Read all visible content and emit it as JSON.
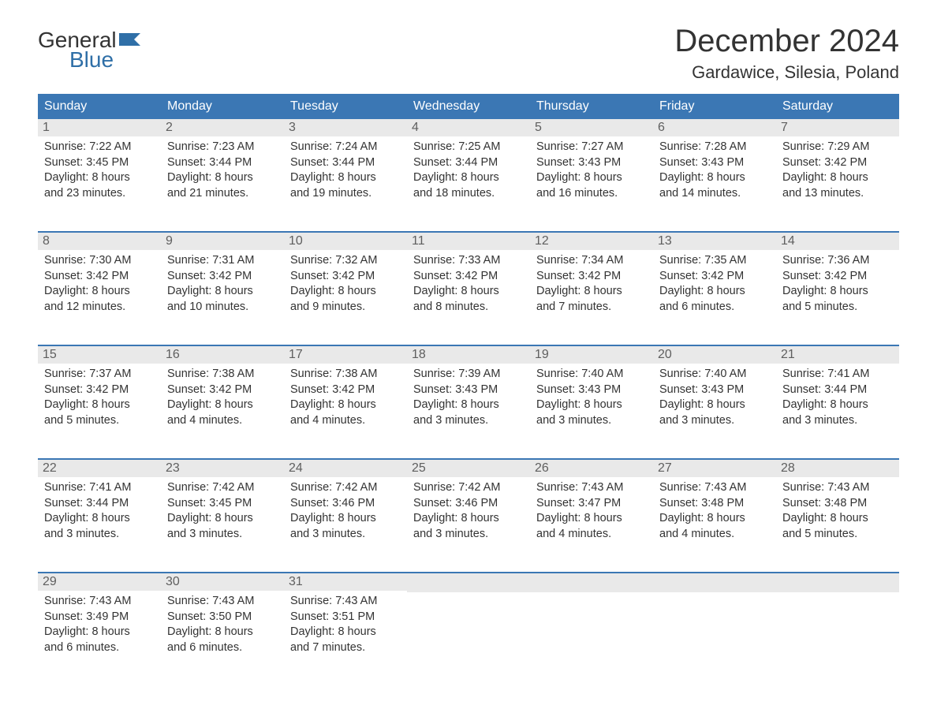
{
  "logo": {
    "top": "General",
    "bottom": "Blue"
  },
  "title": "December 2024",
  "location": "Gardawice, Silesia, Poland",
  "colors": {
    "header_bg": "#3b77b4",
    "header_text": "#ffffff",
    "daynum_bg": "#e9e9e9",
    "daynum_text": "#5f5f5f",
    "body_text": "#333333",
    "border": "#3b77b4",
    "logo_blue": "#2f6fa7"
  },
  "weekdays": [
    "Sunday",
    "Monday",
    "Tuesday",
    "Wednesday",
    "Thursday",
    "Friday",
    "Saturday"
  ],
  "weeks": [
    [
      {
        "num": "1",
        "sunrise": "Sunrise: 7:22 AM",
        "sunset": "Sunset: 3:45 PM",
        "dl1": "Daylight: 8 hours",
        "dl2": "and 23 minutes."
      },
      {
        "num": "2",
        "sunrise": "Sunrise: 7:23 AM",
        "sunset": "Sunset: 3:44 PM",
        "dl1": "Daylight: 8 hours",
        "dl2": "and 21 minutes."
      },
      {
        "num": "3",
        "sunrise": "Sunrise: 7:24 AM",
        "sunset": "Sunset: 3:44 PM",
        "dl1": "Daylight: 8 hours",
        "dl2": "and 19 minutes."
      },
      {
        "num": "4",
        "sunrise": "Sunrise: 7:25 AM",
        "sunset": "Sunset: 3:44 PM",
        "dl1": "Daylight: 8 hours",
        "dl2": "and 18 minutes."
      },
      {
        "num": "5",
        "sunrise": "Sunrise: 7:27 AM",
        "sunset": "Sunset: 3:43 PM",
        "dl1": "Daylight: 8 hours",
        "dl2": "and 16 minutes."
      },
      {
        "num": "6",
        "sunrise": "Sunrise: 7:28 AM",
        "sunset": "Sunset: 3:43 PM",
        "dl1": "Daylight: 8 hours",
        "dl2": "and 14 minutes."
      },
      {
        "num": "7",
        "sunrise": "Sunrise: 7:29 AM",
        "sunset": "Sunset: 3:42 PM",
        "dl1": "Daylight: 8 hours",
        "dl2": "and 13 minutes."
      }
    ],
    [
      {
        "num": "8",
        "sunrise": "Sunrise: 7:30 AM",
        "sunset": "Sunset: 3:42 PM",
        "dl1": "Daylight: 8 hours",
        "dl2": "and 12 minutes."
      },
      {
        "num": "9",
        "sunrise": "Sunrise: 7:31 AM",
        "sunset": "Sunset: 3:42 PM",
        "dl1": "Daylight: 8 hours",
        "dl2": "and 10 minutes."
      },
      {
        "num": "10",
        "sunrise": "Sunrise: 7:32 AM",
        "sunset": "Sunset: 3:42 PM",
        "dl1": "Daylight: 8 hours",
        "dl2": "and 9 minutes."
      },
      {
        "num": "11",
        "sunrise": "Sunrise: 7:33 AM",
        "sunset": "Sunset: 3:42 PM",
        "dl1": "Daylight: 8 hours",
        "dl2": "and 8 minutes."
      },
      {
        "num": "12",
        "sunrise": "Sunrise: 7:34 AM",
        "sunset": "Sunset: 3:42 PM",
        "dl1": "Daylight: 8 hours",
        "dl2": "and 7 minutes."
      },
      {
        "num": "13",
        "sunrise": "Sunrise: 7:35 AM",
        "sunset": "Sunset: 3:42 PM",
        "dl1": "Daylight: 8 hours",
        "dl2": "and 6 minutes."
      },
      {
        "num": "14",
        "sunrise": "Sunrise: 7:36 AM",
        "sunset": "Sunset: 3:42 PM",
        "dl1": "Daylight: 8 hours",
        "dl2": "and 5 minutes."
      }
    ],
    [
      {
        "num": "15",
        "sunrise": "Sunrise: 7:37 AM",
        "sunset": "Sunset: 3:42 PM",
        "dl1": "Daylight: 8 hours",
        "dl2": "and 5 minutes."
      },
      {
        "num": "16",
        "sunrise": "Sunrise: 7:38 AM",
        "sunset": "Sunset: 3:42 PM",
        "dl1": "Daylight: 8 hours",
        "dl2": "and 4 minutes."
      },
      {
        "num": "17",
        "sunrise": "Sunrise: 7:38 AM",
        "sunset": "Sunset: 3:42 PM",
        "dl1": "Daylight: 8 hours",
        "dl2": "and 4 minutes."
      },
      {
        "num": "18",
        "sunrise": "Sunrise: 7:39 AM",
        "sunset": "Sunset: 3:43 PM",
        "dl1": "Daylight: 8 hours",
        "dl2": "and 3 minutes."
      },
      {
        "num": "19",
        "sunrise": "Sunrise: 7:40 AM",
        "sunset": "Sunset: 3:43 PM",
        "dl1": "Daylight: 8 hours",
        "dl2": "and 3 minutes."
      },
      {
        "num": "20",
        "sunrise": "Sunrise: 7:40 AM",
        "sunset": "Sunset: 3:43 PM",
        "dl1": "Daylight: 8 hours",
        "dl2": "and 3 minutes."
      },
      {
        "num": "21",
        "sunrise": "Sunrise: 7:41 AM",
        "sunset": "Sunset: 3:44 PM",
        "dl1": "Daylight: 8 hours",
        "dl2": "and 3 minutes."
      }
    ],
    [
      {
        "num": "22",
        "sunrise": "Sunrise: 7:41 AM",
        "sunset": "Sunset: 3:44 PM",
        "dl1": "Daylight: 8 hours",
        "dl2": "and 3 minutes."
      },
      {
        "num": "23",
        "sunrise": "Sunrise: 7:42 AM",
        "sunset": "Sunset: 3:45 PM",
        "dl1": "Daylight: 8 hours",
        "dl2": "and 3 minutes."
      },
      {
        "num": "24",
        "sunrise": "Sunrise: 7:42 AM",
        "sunset": "Sunset: 3:46 PM",
        "dl1": "Daylight: 8 hours",
        "dl2": "and 3 minutes."
      },
      {
        "num": "25",
        "sunrise": "Sunrise: 7:42 AM",
        "sunset": "Sunset: 3:46 PM",
        "dl1": "Daylight: 8 hours",
        "dl2": "and 3 minutes."
      },
      {
        "num": "26",
        "sunrise": "Sunrise: 7:43 AM",
        "sunset": "Sunset: 3:47 PM",
        "dl1": "Daylight: 8 hours",
        "dl2": "and 4 minutes."
      },
      {
        "num": "27",
        "sunrise": "Sunrise: 7:43 AM",
        "sunset": "Sunset: 3:48 PM",
        "dl1": "Daylight: 8 hours",
        "dl2": "and 4 minutes."
      },
      {
        "num": "28",
        "sunrise": "Sunrise: 7:43 AM",
        "sunset": "Sunset: 3:48 PM",
        "dl1": "Daylight: 8 hours",
        "dl2": "and 5 minutes."
      }
    ],
    [
      {
        "num": "29",
        "sunrise": "Sunrise: 7:43 AM",
        "sunset": "Sunset: 3:49 PM",
        "dl1": "Daylight: 8 hours",
        "dl2": "and 6 minutes."
      },
      {
        "num": "30",
        "sunrise": "Sunrise: 7:43 AM",
        "sunset": "Sunset: 3:50 PM",
        "dl1": "Daylight: 8 hours",
        "dl2": "and 6 minutes."
      },
      {
        "num": "31",
        "sunrise": "Sunrise: 7:43 AM",
        "sunset": "Sunset: 3:51 PM",
        "dl1": "Daylight: 8 hours",
        "dl2": "and 7 minutes."
      },
      null,
      null,
      null,
      null
    ]
  ]
}
